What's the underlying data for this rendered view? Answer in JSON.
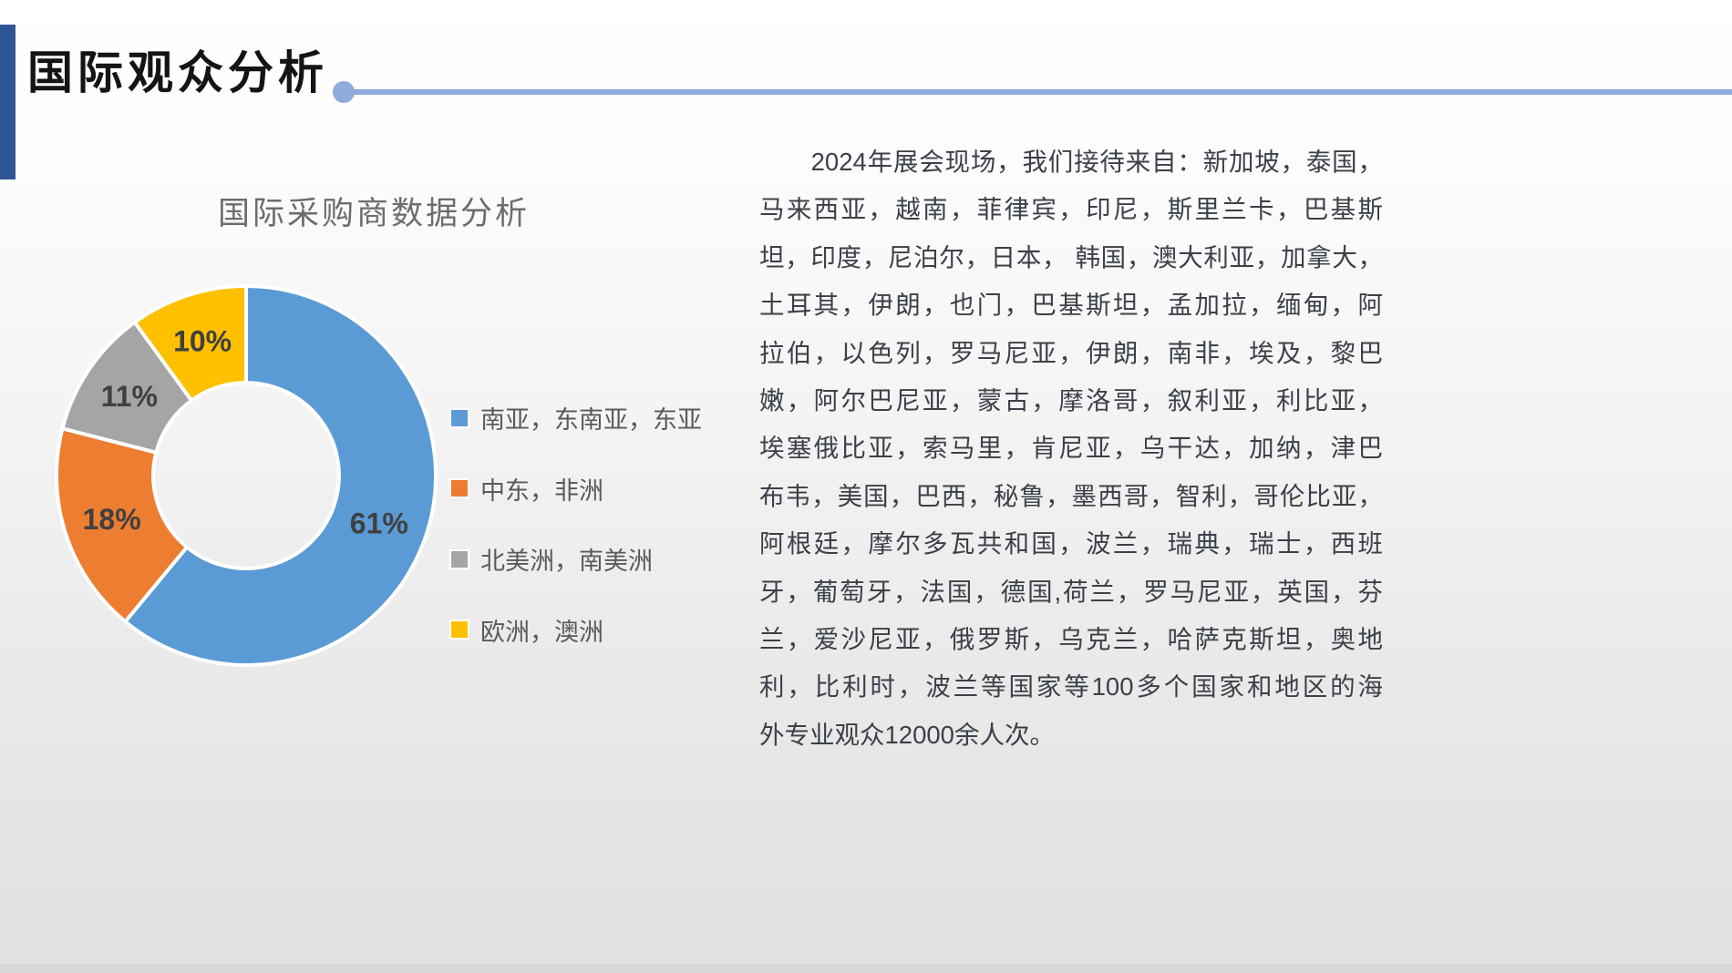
{
  "slide": {
    "title": "国际观众分析"
  },
  "chart_data": {
    "type": "pie",
    "subtype": "donut",
    "title": "国际采购商数据分析",
    "categories": [
      "南亚，东南亚，东亚",
      "中东，非洲",
      "北美洲，南美洲",
      "欧洲，澳洲"
    ],
    "values": [
      61,
      18,
      11,
      10
    ],
    "labels": [
      "61%",
      "18%",
      "11%",
      "10%"
    ],
    "colors": [
      "#5B9BD5",
      "#ED7D31",
      "#A5A5A5",
      "#FFC000"
    ],
    "legend_position": "right",
    "start_angle_deg": 0,
    "hole_ratio": 0.49
  },
  "paragraph": {
    "lines": [
      "　　2024年展会现场，我们接待来自：新加坡，泰国，",
      "马来西亚，越南，菲律宾，印尼，斯里兰卡，巴基斯",
      "坦，印度，尼泊尔，日本， 韩国，澳大利亚，加拿大，",
      "土耳其，伊朗，也门，巴基斯坦，孟加拉，缅甸，阿",
      "拉伯，以色列，罗马尼亚，伊朗，南非，埃及，黎巴",
      "嫩，阿尔巴尼亚，蒙古，摩洛哥，叙利亚，利比亚，",
      "埃塞俄比亚，索马里，肯尼亚，乌干达，加纳，津巴",
      "布韦，美国，巴西，秘鲁，墨西哥，智利，哥伦比亚，",
      "阿根廷，摩尔多瓦共和国，波兰，瑞典，瑞士，西班",
      "牙，葡萄牙，法国，德国,荷兰，罗马尼亚，英国，芬",
      "兰，爱沙尼亚，俄罗斯，乌克兰，哈萨克斯坦，奥地",
      "利，比利时，波兰等国家等100多个国家和地区的海",
      "外专业观众12000余人次。"
    ]
  },
  "theme": {
    "title_bar_color": "#2F5496",
    "accent_line_color": "#8FAADC",
    "slice_label_color": "#404040",
    "body_text_color": "#3B4049"
  }
}
